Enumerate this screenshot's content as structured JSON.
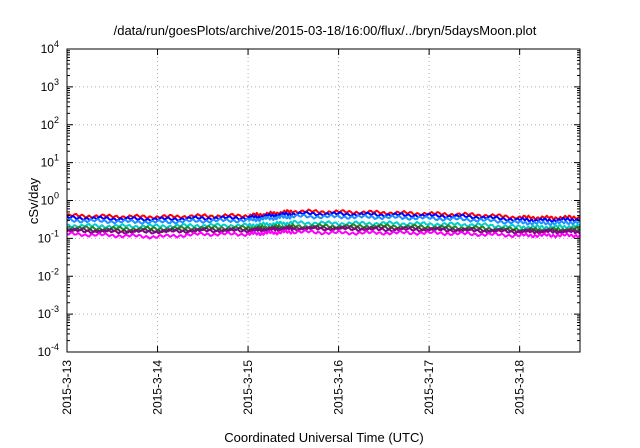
{
  "chart_data": {
    "type": "line",
    "title": "/data/run/goesPlots/archive/2015-03-18/16:00/flux/../bryn/5daysMoon.plot",
    "xlabel": "Coordinated Universal Time (UTC)",
    "ylabel": "cSv/day",
    "y_scale": "log",
    "ylim": [
      0.0001,
      10000
    ],
    "xlim": [
      "2015-03-13T00:00",
      "2015-03-18T16:00"
    ],
    "grid": true,
    "x_ticks": [
      "2015-3-13",
      "2015-3-14",
      "2015-3-15",
      "2015-3-16",
      "2015-3-17",
      "2015-3-18"
    ],
    "y_ticks": [
      {
        "base": "10",
        "exp": "-4",
        "value": 0.0001
      },
      {
        "base": "10",
        "exp": "-3",
        "value": 0.001
      },
      {
        "base": "10",
        "exp": "-2",
        "value": 0.01
      },
      {
        "base": "10",
        "exp": "-1",
        "value": 0.1
      },
      {
        "base": "10",
        "exp": "0",
        "value": 1
      },
      {
        "base": "10",
        "exp": "1",
        "value": 10
      },
      {
        "base": "10",
        "exp": "2",
        "value": 100
      },
      {
        "base": "10",
        "exp": "3",
        "value": 1000
      },
      {
        "base": "10",
        "exp": "4",
        "value": 10000
      }
    ],
    "x": [
      "2015-03-13T00:00",
      "2015-03-13T12:00",
      "2015-03-14T00:00",
      "2015-03-14T12:00",
      "2015-03-15T00:00",
      "2015-03-15T06:00",
      "2015-03-15T12:00",
      "2015-03-16T00:00",
      "2015-03-16T12:00",
      "2015-03-17T00:00",
      "2015-03-17T12:00",
      "2015-03-18T00:00",
      "2015-03-18T08:00",
      "2015-03-18T16:00"
    ],
    "series": [
      {
        "color": "#ff0000",
        "values": [
          0.4,
          0.38,
          0.37,
          0.39,
          0.4,
          0.45,
          0.52,
          0.5,
          0.48,
          0.45,
          0.42,
          0.36,
          0.35,
          0.36
        ]
      },
      {
        "color": "#0000ff",
        "values": [
          0.35,
          0.33,
          0.32,
          0.34,
          0.35,
          0.4,
          0.45,
          0.44,
          0.42,
          0.4,
          0.37,
          0.31,
          0.3,
          0.32
        ]
      },
      {
        "color": "#1e90ff",
        "values": [
          0.3,
          0.28,
          0.27,
          0.29,
          0.3,
          0.34,
          0.38,
          0.37,
          0.36,
          0.34,
          0.31,
          0.26,
          0.25,
          0.27
        ]
      },
      {
        "color": "#00ced1",
        "values": [
          0.22,
          0.21,
          0.21,
          0.22,
          0.22,
          0.24,
          0.26,
          0.25,
          0.25,
          0.24,
          0.23,
          0.2,
          0.2,
          0.21
        ]
      },
      {
        "color": "#228b22",
        "values": [
          0.19,
          0.18,
          0.18,
          0.19,
          0.19,
          0.2,
          0.21,
          0.21,
          0.21,
          0.2,
          0.19,
          0.17,
          0.17,
          0.18
        ]
      },
      {
        "color": "#404040",
        "values": [
          0.17,
          0.16,
          0.16,
          0.17,
          0.17,
          0.18,
          0.19,
          0.19,
          0.19,
          0.18,
          0.17,
          0.16,
          0.16,
          0.16
        ]
      },
      {
        "color": "#8b008b",
        "values": [
          0.16,
          0.15,
          0.15,
          0.16,
          0.16,
          0.17,
          0.18,
          0.18,
          0.17,
          0.17,
          0.16,
          0.15,
          0.15,
          0.15
        ]
      },
      {
        "color": "#ff00ff",
        "values": [
          0.13,
          0.12,
          0.11,
          0.13,
          0.13,
          0.14,
          0.15,
          0.14,
          0.14,
          0.14,
          0.13,
          0.12,
          0.12,
          0.12
        ]
      }
    ]
  }
}
